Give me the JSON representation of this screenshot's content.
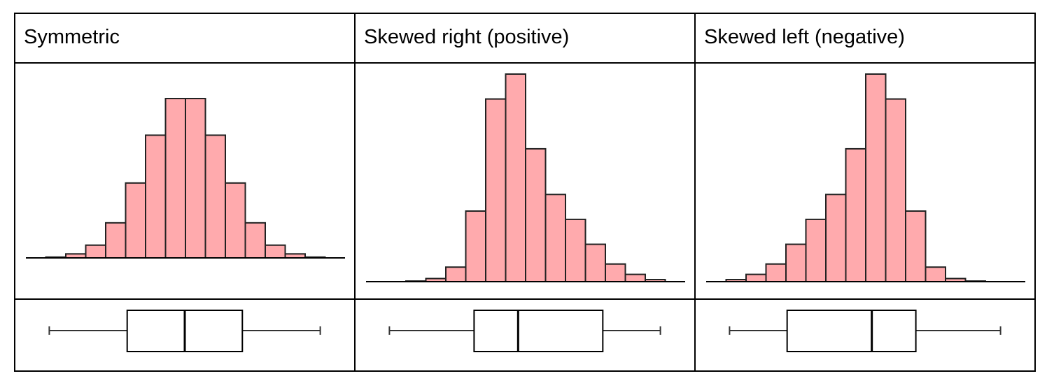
{
  "colors": {
    "bar_fill": "#ffaaad",
    "bar_stroke": "#222222",
    "axis": "#000000",
    "box_stroke": "#000000",
    "whisker": "#333333",
    "cell_border": "#000000"
  },
  "columns": [
    {
      "title": "Symmetric",
      "histogram_relative_heights": [
        0.0,
        0.005,
        0.025,
        0.08,
        0.22,
        0.47,
        0.77,
        1.0,
        1.0,
        0.77,
        0.47,
        0.22,
        0.08,
        0.025,
        0.005,
        0.0
      ],
      "boxplot": {
        "min": 0.1,
        "q1": 0.33,
        "median": 0.5,
        "q3": 0.67,
        "max": 0.9
      }
    },
    {
      "title": "Skewed right (positive)",
      "histogram_relative_heights": [
        0.0,
        0.0,
        0.003,
        0.015,
        0.07,
        0.34,
        0.88,
        1.0,
        0.64,
        0.42,
        0.3,
        0.18,
        0.085,
        0.035,
        0.01,
        0.0
      ],
      "boxplot": {
        "min": 0.1,
        "q1": 0.35,
        "median": 0.48,
        "q3": 0.73,
        "max": 0.9
      }
    },
    {
      "title": "Skewed left (negative)",
      "histogram_relative_heights": [
        0.0,
        0.01,
        0.035,
        0.085,
        0.18,
        0.3,
        0.42,
        0.64,
        1.0,
        0.88,
        0.34,
        0.07,
        0.015,
        0.003,
        0.0,
        0.0
      ],
      "boxplot": {
        "min": 0.1,
        "q1": 0.27,
        "median": 0.52,
        "q3": 0.65,
        "max": 0.9
      }
    }
  ]
}
